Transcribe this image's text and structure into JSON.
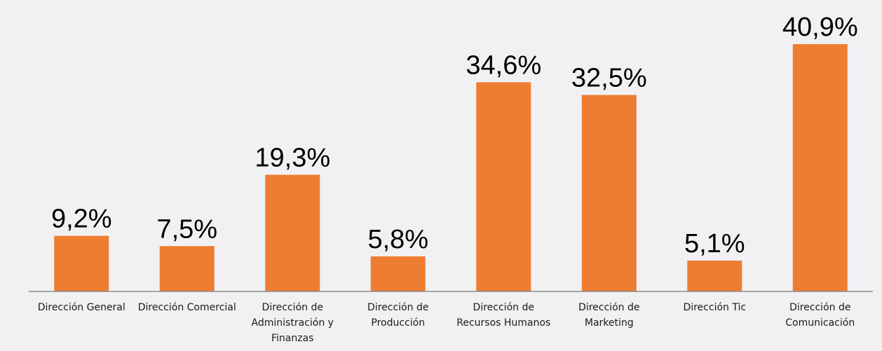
{
  "chart_data": {
    "type": "bar",
    "title": "",
    "xlabel": "",
    "ylabel": "",
    "ylim": [
      0,
      42
    ],
    "grid": false,
    "categories": [
      "Dirección General",
      "Dirección Comercial",
      "Dirección de\nAdministración y\nFinanzas",
      "Dirección de\nProducción",
      "Dirección de\nRecursos Humanos",
      "Dirección de\nMarketing",
      "Dirección Tic",
      "Dirección de\nComunicación"
    ],
    "values": [
      9.2,
      7.5,
      19.3,
      5.8,
      34.6,
      32.5,
      5.1,
      40.9
    ],
    "value_labels": [
      "9,2%",
      "7,5%",
      "19,3%",
      "5,8%",
      "34,6%",
      "32,5%",
      "5,1%",
      "40,9%"
    ],
    "colors": {
      "bar": "#ED7D31",
      "axis": "#8C8C8C",
      "background": "#F1F1F3"
    }
  }
}
